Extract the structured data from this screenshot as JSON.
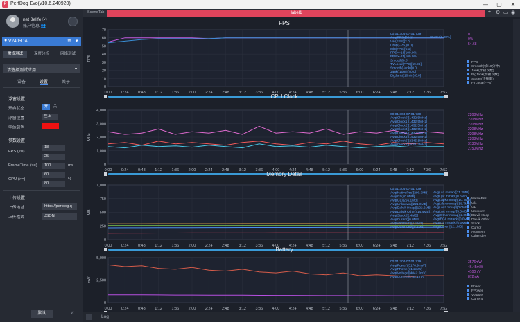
{
  "window": {
    "app_icon": "perfdog-logo-icon",
    "title": "PerfDog Evo(v10.6.240920)",
    "controls": [
      "—",
      "▢",
      "✕"
    ]
  },
  "profile": {
    "name": "net 3elife ⓥ",
    "info": "账户信息 👥"
  },
  "device": {
    "name": "V2405DA",
    "wifi_icon": "wifi-icon"
  },
  "mode_tabs": [
    "常规测试",
    "深度分析",
    "网络测试"
  ],
  "app_select_placeholder": "请选择测试应用",
  "sub_tabs": [
    "设备",
    "设置",
    "关于"
  ],
  "float": {
    "title": "浮窗设置",
    "open_label": "开启状态",
    "on": "开",
    "off": "关",
    "pos_label": "浮窗位置",
    "pos_value": "左上",
    "color_label": "字体颜色",
    "color": "#ee1111"
  },
  "params": {
    "title": "参数设置",
    "fps_label": "FPS (<=)",
    "fps_values": [
      "18",
      "25"
    ],
    "ft_label": "FrameTime (>=)",
    "ft_value": "100",
    "ft_unit": "ms",
    "cpu_label": "CPU (>=)",
    "cpu_values": [
      "60",
      "80"
    ],
    "cpu_unit": "%"
  },
  "upload": {
    "title": "上传设置",
    "addr_label": "上传地址",
    "addr_value": "https://perfdog.q",
    "fmt_label": "上传格式",
    "fmt_value": "JSON"
  },
  "default_button": "默认",
  "main": {
    "scene_tab": "SceneTab",
    "label": "label1",
    "log": "Log"
  },
  "x_ticks": [
    "0:00",
    "0:24",
    "0:48",
    "1:12",
    "1:36",
    "2:00",
    "2:24",
    "2:48",
    "3:12",
    "3:36",
    "4:00",
    "4:24",
    "4:48",
    "5:12",
    "5:36",
    "6:00",
    "6:24",
    "6:48",
    "7:12",
    "7:36",
    "7:52"
  ],
  "chart_data": [
    {
      "type": "line",
      "title": "FPS",
      "ylabel": "FPS",
      "ylim": [
        0,
        70
      ],
      "yticks": [
        "70",
        "60",
        "50",
        "40",
        "30",
        "20",
        "10",
        "0"
      ],
      "legend": [
        "FPS",
        "Smooth(帧/10分钟)",
        "Jank(卡顿次数)",
        "BigJank(卡顿次数)",
        "Stutter(卡顿率)",
        "FTLocal(FPS)"
      ],
      "right_values": [
        "0",
        "0%",
        "54.68"
      ],
      "tooltip": [
        "00:01:304-07:01:739",
        "Avg(FPS)[60.1]",
        "Var(FPS)[2.0]",
        "Drop(FPS)[0.0]",
        "Min(FPS)[0.0]",
        "FPS>=18[100.0%]",
        "FPS>=25[100.0%]",
        "Smooth[0.0]",
        "TVLocal(FPS)[59.96]",
        "Smooth(Jank)[0.0]",
        "Jank(/10min)[0.0]",
        "BigJank(/10min)[0.0]"
      ],
      "tooltip_right": "Stutter[0.00%]",
      "series": [
        {
          "name": "FPS",
          "color": "#c45be0",
          "values": [
            55,
            60,
            60,
            60,
            60,
            60,
            59,
            60,
            60,
            60,
            60,
            60,
            60,
            60,
            60,
            60,
            60,
            60,
            60,
            60,
            60
          ]
        },
        {
          "name": "FTLocal(FPS)",
          "color": "#3a8fd6",
          "values": [
            54,
            56,
            58,
            59,
            59,
            59,
            59,
            60,
            60,
            60,
            60,
            60,
            60,
            60,
            60,
            60,
            60,
            60,
            60,
            60,
            60
          ]
        }
      ]
    },
    {
      "type": "line",
      "title": "CPU Clock",
      "ylabel": "MHz",
      "ylim": [
        0,
        4000
      ],
      "yticks": [
        "4,000",
        "3,000",
        "2,000",
        "1,000",
        "0"
      ],
      "right_values": [
        "2208MHz",
        "2208MHz",
        "2208MHz",
        "2208MHz",
        "2208MHz",
        "2208MHz",
        "3130MHz",
        "2750MHz"
      ],
      "tooltip": [
        "00:01:304-07:01:739",
        "Avg(Clock0)[1432.5MHz]",
        "Avg(Clock1)[1432.5MHz]",
        "Avg(Clock2)[1432.5MHz]",
        "Avg(Clock3)[1432.5MHz]",
        "Avg(Clock4)[1432.5MHz]",
        "Avg(Clock5)[1432.5MHz]",
        "Avg(Clock6)[2345.1MHz]",
        "Avg(Clock7)[2001.3MHz]"
      ],
      "series": [
        {
          "name": "Clock6",
          "color": "#e06bd0",
          "values": [
            2400,
            2200,
            2300,
            2600,
            2200,
            2400,
            2300,
            2500,
            2200,
            2800,
            2300,
            2400,
            2300,
            2600,
            2200,
            2400,
            2300,
            2500,
            2200,
            2400,
            2300
          ]
        },
        {
          "name": "Clock0",
          "color": "#49c7e6",
          "values": [
            1300,
            1200,
            1400,
            1300,
            1350,
            1250,
            1400,
            1300,
            1200,
            1500,
            1300,
            1350,
            1250,
            1400,
            1300,
            1200,
            1300,
            1350,
            1250,
            1300,
            1300
          ]
        },
        {
          "name": "Clock7",
          "color": "#f25a5a",
          "values": [
            1500,
            1600,
            1400,
            1700,
            1500,
            1600,
            1500,
            1400,
            1600,
            1700,
            1500,
            1400,
            1600,
            1500,
            1700,
            1500,
            1400,
            1600,
            1500,
            1600,
            1500
          ]
        }
      ]
    },
    {
      "type": "line",
      "title": "Memory Detail",
      "ylabel": "MB",
      "ylim": [
        0,
        1000
      ],
      "yticks": [
        "1,000",
        "750",
        "500",
        "250",
        "0"
      ],
      "legend": [
        "NativePss",
        "Gfx",
        "GL",
        "Unknown",
        "Dalvik Heap",
        "Dalvik Other",
        "Stack",
        "Cursor",
        "Ashmem",
        "Other dev"
      ],
      "tooltip": [
        "00:01:304-07:01:739",
        "Avg(NativePss)[290.3MB]",
        "Avg(Gfx)[0.0MB]",
        "Avg(GL)[256.1MB]",
        "Avg(Unknown)[221.0MB]",
        "Avg(Dalvik Heap)[122.2MB]",
        "Avg(Dalvik Other)[14.4MB]",
        "Avg(Stack)[2.4MB]",
        "Avg(Cursor)[0.0MB]",
        "Avg(Ashmem)[0.1MB]",
        "Avg(Other dev)[0.1MB]"
      ],
      "tooltip_right": [
        "Avg(.so mmap)[71.2MB]",
        "Avg(.jar mmap)[0.3MB]",
        "Avg(.apk mmap)[10.7MB]",
        "Avg(.dex mmap)[18.7MB]",
        "Avg(.oat mmap)[0.0MB]",
        "Avg(.art mmap)[5.3MB]",
        "Avg(Other mmap)[2.6MB]",
        "Avg(EGL mtrack)[0.0MB]",
        "Avg(GL mtrack)[0.0MB]",
        "Avg(Other)[12.1MB]"
      ],
      "series": [
        {
          "name": "NativePss",
          "color": "#c49040",
          "values": [
            290,
            290,
            290,
            291,
            291,
            291,
            291,
            291,
            292,
            292,
            292,
            292,
            292,
            292,
            293,
            293,
            293,
            293,
            293,
            293,
            293
          ]
        },
        {
          "name": "GL",
          "color": "#7ac74f",
          "values": [
            256,
            256,
            256,
            256,
            256,
            256,
            256,
            256,
            256,
            256,
            256,
            256,
            256,
            256,
            256,
            256,
            256,
            256,
            256,
            256,
            256
          ]
        },
        {
          "name": "Unknown",
          "color": "#4a8ff0",
          "values": [
            215,
            216,
            217,
            218,
            218,
            219,
            220,
            220,
            221,
            221,
            222,
            222,
            222,
            223,
            223,
            223,
            224,
            224,
            224,
            225,
            225
          ]
        },
        {
          "name": "Dalvik Heap",
          "color": "#e0445c",
          "values": [
            118,
            119,
            119,
            120,
            120,
            121,
            121,
            122,
            122,
            122,
            123,
            123,
            123,
            123,
            124,
            124,
            124,
            124,
            125,
            125,
            125
          ]
        }
      ]
    },
    {
      "type": "line",
      "title": "Battery",
      "ylabel": "mW",
      "ylim": [
        0,
        5000
      ],
      "yticks": [
        "5,000",
        "2,500",
        "0"
      ],
      "legend": [
        "Power",
        "FPower",
        "Voltage",
        "Current"
      ],
      "right_values": [
        "3576mW",
        "46.45mW",
        "4100mV",
        "872mA"
      ],
      "tooltip": [
        "00:01:304-07:01:739",
        "Avg(Power)[3170.9mW]",
        "Avg(FPower)[1.2mW]",
        "Avg(Voltage)[4042.0mV]",
        "Avg(Current)[785.1mA]"
      ],
      "series": [
        {
          "name": "Power",
          "color": "#d65c4a",
          "values": [
            4200,
            4000,
            4100,
            3800,
            3700,
            3900,
            3600,
            3500,
            3700,
            3400,
            3300,
            3500,
            3200,
            3100,
            3300,
            3000,
            3100,
            3000,
            2900,
            3000,
            3000
          ]
        },
        {
          "name": "Current",
          "color": "#b64fe0",
          "values": [
            870,
            860,
            860,
            850,
            840,
            840,
            830,
            820,
            820,
            810,
            800,
            800,
            790,
            780,
            780,
            770,
            770,
            760,
            760,
            760,
            760
          ]
        }
      ]
    }
  ]
}
